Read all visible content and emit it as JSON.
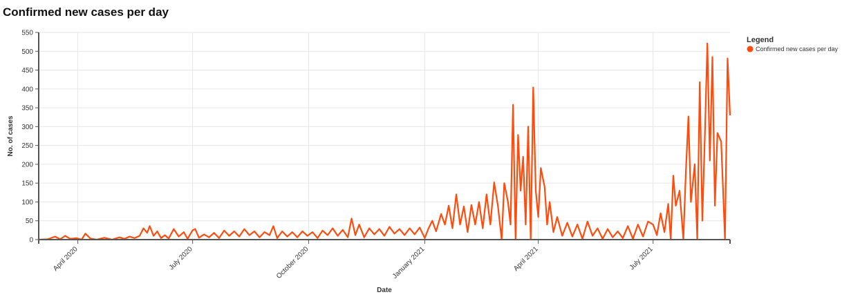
{
  "chart_data": {
    "type": "line",
    "title": "Confirmed new cases per day",
    "xlabel": "Date",
    "ylabel": "No. of cases",
    "x_start": "2020-03-01",
    "x_end": "2021-08-31",
    "ylim": [
      0,
      550
    ],
    "y_ticks": [
      0,
      50,
      100,
      150,
      200,
      250,
      300,
      350,
      400,
      450,
      500,
      550
    ],
    "x_ticks": [
      {
        "date": "2020-04-01",
        "label": "April 2020"
      },
      {
        "date": "2020-07-01",
        "label": "July 2020"
      },
      {
        "date": "2020-10-01",
        "label": "October 2020"
      },
      {
        "date": "2021-01-01",
        "label": "January 2021"
      },
      {
        "date": "2021-04-01",
        "label": "April 2021"
      },
      {
        "date": "2021-07-01",
        "label": "July 2021"
      }
    ],
    "grid": true,
    "legend": {
      "title": "Legend",
      "position": "top-right"
    },
    "series": [
      {
        "name": "Confirmed new cases per day",
        "color": "#ff4c0c",
        "points": [
          [
            "2020-03-01",
            0
          ],
          [
            "2020-03-08",
            1
          ],
          [
            "2020-03-14",
            8
          ],
          [
            "2020-03-18",
            1
          ],
          [
            "2020-03-22",
            10
          ],
          [
            "2020-03-26",
            2
          ],
          [
            "2020-03-31",
            4
          ],
          [
            "2020-04-04",
            0
          ],
          [
            "2020-04-07",
            16
          ],
          [
            "2020-04-11",
            3
          ],
          [
            "2020-04-16",
            0
          ],
          [
            "2020-04-22",
            5
          ],
          [
            "2020-04-28",
            0
          ],
          [
            "2020-05-04",
            6
          ],
          [
            "2020-05-08",
            2
          ],
          [
            "2020-05-12",
            8
          ],
          [
            "2020-05-16",
            4
          ],
          [
            "2020-05-20",
            10
          ],
          [
            "2020-05-23",
            30
          ],
          [
            "2020-05-26",
            18
          ],
          [
            "2020-05-28",
            36
          ],
          [
            "2020-05-31",
            10
          ],
          [
            "2020-06-03",
            22
          ],
          [
            "2020-06-06",
            4
          ],
          [
            "2020-06-09",
            12
          ],
          [
            "2020-06-12",
            3
          ],
          [
            "2020-06-16",
            28
          ],
          [
            "2020-06-20",
            8
          ],
          [
            "2020-06-24",
            20
          ],
          [
            "2020-06-27",
            2
          ],
          [
            "2020-07-01",
            25
          ],
          [
            "2020-07-03",
            28
          ],
          [
            "2020-07-06",
            5
          ],
          [
            "2020-07-10",
            14
          ],
          [
            "2020-07-14",
            6
          ],
          [
            "2020-07-18",
            18
          ],
          [
            "2020-07-22",
            4
          ],
          [
            "2020-07-26",
            24
          ],
          [
            "2020-07-30",
            10
          ],
          [
            "2020-08-03",
            22
          ],
          [
            "2020-08-07",
            8
          ],
          [
            "2020-08-11",
            28
          ],
          [
            "2020-08-15",
            12
          ],
          [
            "2020-08-19",
            22
          ],
          [
            "2020-08-23",
            6
          ],
          [
            "2020-08-27",
            20
          ],
          [
            "2020-08-31",
            12
          ],
          [
            "2020-09-03",
            36
          ],
          [
            "2020-09-06",
            4
          ],
          [
            "2020-09-10",
            22
          ],
          [
            "2020-09-14",
            8
          ],
          [
            "2020-09-18",
            20
          ],
          [
            "2020-09-22",
            6
          ],
          [
            "2020-09-26",
            22
          ],
          [
            "2020-09-30",
            10
          ],
          [
            "2020-10-04",
            20
          ],
          [
            "2020-10-08",
            4
          ],
          [
            "2020-10-12",
            24
          ],
          [
            "2020-10-16",
            12
          ],
          [
            "2020-10-20",
            30
          ],
          [
            "2020-10-24",
            10
          ],
          [
            "2020-10-28",
            26
          ],
          [
            "2020-11-01",
            6
          ],
          [
            "2020-11-04",
            56
          ],
          [
            "2020-11-07",
            12
          ],
          [
            "2020-11-10",
            40
          ],
          [
            "2020-11-14",
            6
          ],
          [
            "2020-11-18",
            30
          ],
          [
            "2020-11-22",
            14
          ],
          [
            "2020-11-26",
            28
          ],
          [
            "2020-11-30",
            10
          ],
          [
            "2020-12-04",
            34
          ],
          [
            "2020-12-08",
            16
          ],
          [
            "2020-12-12",
            28
          ],
          [
            "2020-12-16",
            12
          ],
          [
            "2020-12-20",
            30
          ],
          [
            "2020-12-24",
            14
          ],
          [
            "2020-12-28",
            32
          ],
          [
            "2021-01-01",
            4
          ],
          [
            "2021-01-04",
            30
          ],
          [
            "2021-01-07",
            50
          ],
          [
            "2021-01-10",
            22
          ],
          [
            "2021-01-14",
            68
          ],
          [
            "2021-01-17",
            40
          ],
          [
            "2021-01-20",
            90
          ],
          [
            "2021-01-23",
            30
          ],
          [
            "2021-01-26",
            120
          ],
          [
            "2021-01-29",
            40
          ],
          [
            "2021-02-01",
            88
          ],
          [
            "2021-02-04",
            20
          ],
          [
            "2021-02-07",
            92
          ],
          [
            "2021-02-10",
            40
          ],
          [
            "2021-02-13",
            100
          ],
          [
            "2021-02-16",
            30
          ],
          [
            "2021-02-19",
            120
          ],
          [
            "2021-02-22",
            40
          ],
          [
            "2021-02-25",
            152
          ],
          [
            "2021-02-28",
            90
          ],
          [
            "2021-03-03",
            0
          ],
          [
            "2021-03-05",
            150
          ],
          [
            "2021-03-08",
            100
          ],
          [
            "2021-03-10",
            40
          ],
          [
            "2021-03-12",
            358
          ],
          [
            "2021-03-14",
            0
          ],
          [
            "2021-03-16",
            278
          ],
          [
            "2021-03-18",
            130
          ],
          [
            "2021-03-20",
            220
          ],
          [
            "2021-03-22",
            40
          ],
          [
            "2021-03-24",
            300
          ],
          [
            "2021-03-26",
            0
          ],
          [
            "2021-03-28",
            404
          ],
          [
            "2021-03-30",
            130
          ],
          [
            "2021-04-01",
            60
          ],
          [
            "2021-04-03",
            190
          ],
          [
            "2021-04-06",
            140
          ],
          [
            "2021-04-08",
            40
          ],
          [
            "2021-04-10",
            100
          ],
          [
            "2021-04-13",
            20
          ],
          [
            "2021-04-16",
            60
          ],
          [
            "2021-04-20",
            10
          ],
          [
            "2021-04-24",
            45
          ],
          [
            "2021-04-28",
            8
          ],
          [
            "2021-05-02",
            40
          ],
          [
            "2021-05-06",
            2
          ],
          [
            "2021-05-10",
            48
          ],
          [
            "2021-05-14",
            10
          ],
          [
            "2021-05-18",
            30
          ],
          [
            "2021-05-22",
            2
          ],
          [
            "2021-05-26",
            28
          ],
          [
            "2021-05-30",
            6
          ],
          [
            "2021-06-03",
            22
          ],
          [
            "2021-06-07",
            4
          ],
          [
            "2021-06-11",
            36
          ],
          [
            "2021-06-15",
            2
          ],
          [
            "2021-06-19",
            40
          ],
          [
            "2021-06-23",
            8
          ],
          [
            "2021-06-27",
            48
          ],
          [
            "2021-07-01",
            40
          ],
          [
            "2021-07-04",
            12
          ],
          [
            "2021-07-07",
            70
          ],
          [
            "2021-07-10",
            20
          ],
          [
            "2021-07-13",
            95
          ],
          [
            "2021-07-15",
            0
          ],
          [
            "2021-07-17",
            170
          ],
          [
            "2021-07-19",
            90
          ],
          [
            "2021-07-22",
            130
          ],
          [
            "2021-07-25",
            0
          ],
          [
            "2021-07-27",
            180
          ],
          [
            "2021-07-29",
            327
          ],
          [
            "2021-07-31",
            100
          ],
          [
            "2021-08-03",
            200
          ],
          [
            "2021-08-05",
            0
          ],
          [
            "2021-08-07",
            418
          ],
          [
            "2021-08-09",
            50
          ],
          [
            "2021-08-11",
            270
          ],
          [
            "2021-08-13",
            521
          ],
          [
            "2021-08-15",
            210
          ],
          [
            "2021-08-17",
            485
          ],
          [
            "2021-08-19",
            90
          ],
          [
            "2021-08-21",
            283
          ],
          [
            "2021-08-24",
            260
          ],
          [
            "2021-08-27",
            0
          ],
          [
            "2021-08-29",
            481
          ],
          [
            "2021-08-31",
            330
          ]
        ]
      }
    ]
  }
}
